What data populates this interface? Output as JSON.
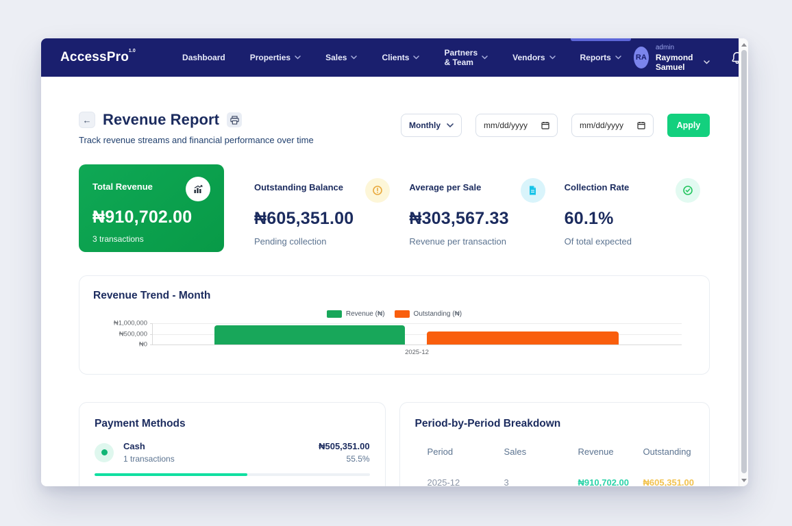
{
  "navbar": {
    "logo": "AccessPro",
    "logo_version": "1.0",
    "items": [
      {
        "label": "Dashboard",
        "caret": false,
        "active": false
      },
      {
        "label": "Properties",
        "caret": true,
        "active": false
      },
      {
        "label": "Sales",
        "caret": true,
        "active": false
      },
      {
        "label": "Clients",
        "caret": true,
        "active": false
      },
      {
        "label": "Partners & Team",
        "caret": true,
        "active": false
      },
      {
        "label": "Vendors",
        "caret": true,
        "active": false
      },
      {
        "label": "Reports",
        "caret": true,
        "active": true
      }
    ],
    "user": {
      "initials": "RA",
      "role": "admin",
      "name": "Raymond Samuel"
    }
  },
  "header": {
    "title": "Revenue Report",
    "subtitle": "Track revenue streams and financial performance over time",
    "period_select": "Monthly",
    "date_from_placeholder": "mm/dd/yyyy",
    "date_to_placeholder": "mm/dd/yyyy",
    "apply_label": "Apply"
  },
  "stats": [
    {
      "label": "Total Revenue",
      "value": "₦910,702.00",
      "sub": "3 transactions",
      "icon": "bar-chart"
    },
    {
      "label": "Outstanding Balance",
      "value": "₦605,351.00",
      "sub": "Pending collection",
      "icon": "alert-circle",
      "icon_color": "#E9A93D",
      "icon_bg": "#FDF6D8"
    },
    {
      "label": "Average per Sale",
      "value": "₦303,567.33",
      "sub": "Revenue per transaction",
      "icon": "file-invoice",
      "icon_color": "#17C3E8",
      "icon_bg": "#D9F4FB"
    },
    {
      "label": "Collection Rate",
      "value": "60.1%",
      "sub": "Of total expected",
      "icon": "check-circle",
      "icon_color": "#22C55E",
      "icon_bg": "#E2FAF1"
    }
  ],
  "chart_data": {
    "type": "bar",
    "title": "Revenue Trend - Month",
    "categories": [
      "2025-12"
    ],
    "series": [
      {
        "name": "Revenue (₦)",
        "color": "#18A75A",
        "values": [
          910702
        ]
      },
      {
        "name": "Outstanding (₦)",
        "color": "#F95E0D",
        "values": [
          605351
        ]
      }
    ],
    "ylim": [
      0,
      1000000
    ],
    "yticks": [
      {
        "label": "₦1,000,000",
        "value": 1000000
      },
      {
        "label": "₦500,000",
        "value": 500000
      },
      {
        "label": "₦0",
        "value": 0
      }
    ],
    "legend_position": "top-center",
    "grid": true
  },
  "payment_methods": {
    "title": "Payment Methods",
    "rows": [
      {
        "method": "Cash",
        "transactions": "1 transactions",
        "amount": "₦505,351.00",
        "percent": "55.5%",
        "percent_value": 55.5
      }
    ]
  },
  "breakdown": {
    "title": "Period-by-Period Breakdown",
    "columns": [
      "Period",
      "Sales",
      "Revenue",
      "Outstanding"
    ],
    "rows": [
      {
        "period": "2025-12",
        "sales": "3",
        "revenue": "₦910,702.00",
        "outstanding": "₦605,351.00"
      }
    ]
  },
  "colors": {
    "brand_navy": "#1A1F6E",
    "brand_green": "#0FA250",
    "apply_green": "#13D07E",
    "progress_green": "#10DFA0",
    "chart_revenue": "#18A75A",
    "chart_outstanding": "#F95E0D",
    "nav_active_indicator": "#5E67DA",
    "notification_dot": "#25C9E8"
  }
}
